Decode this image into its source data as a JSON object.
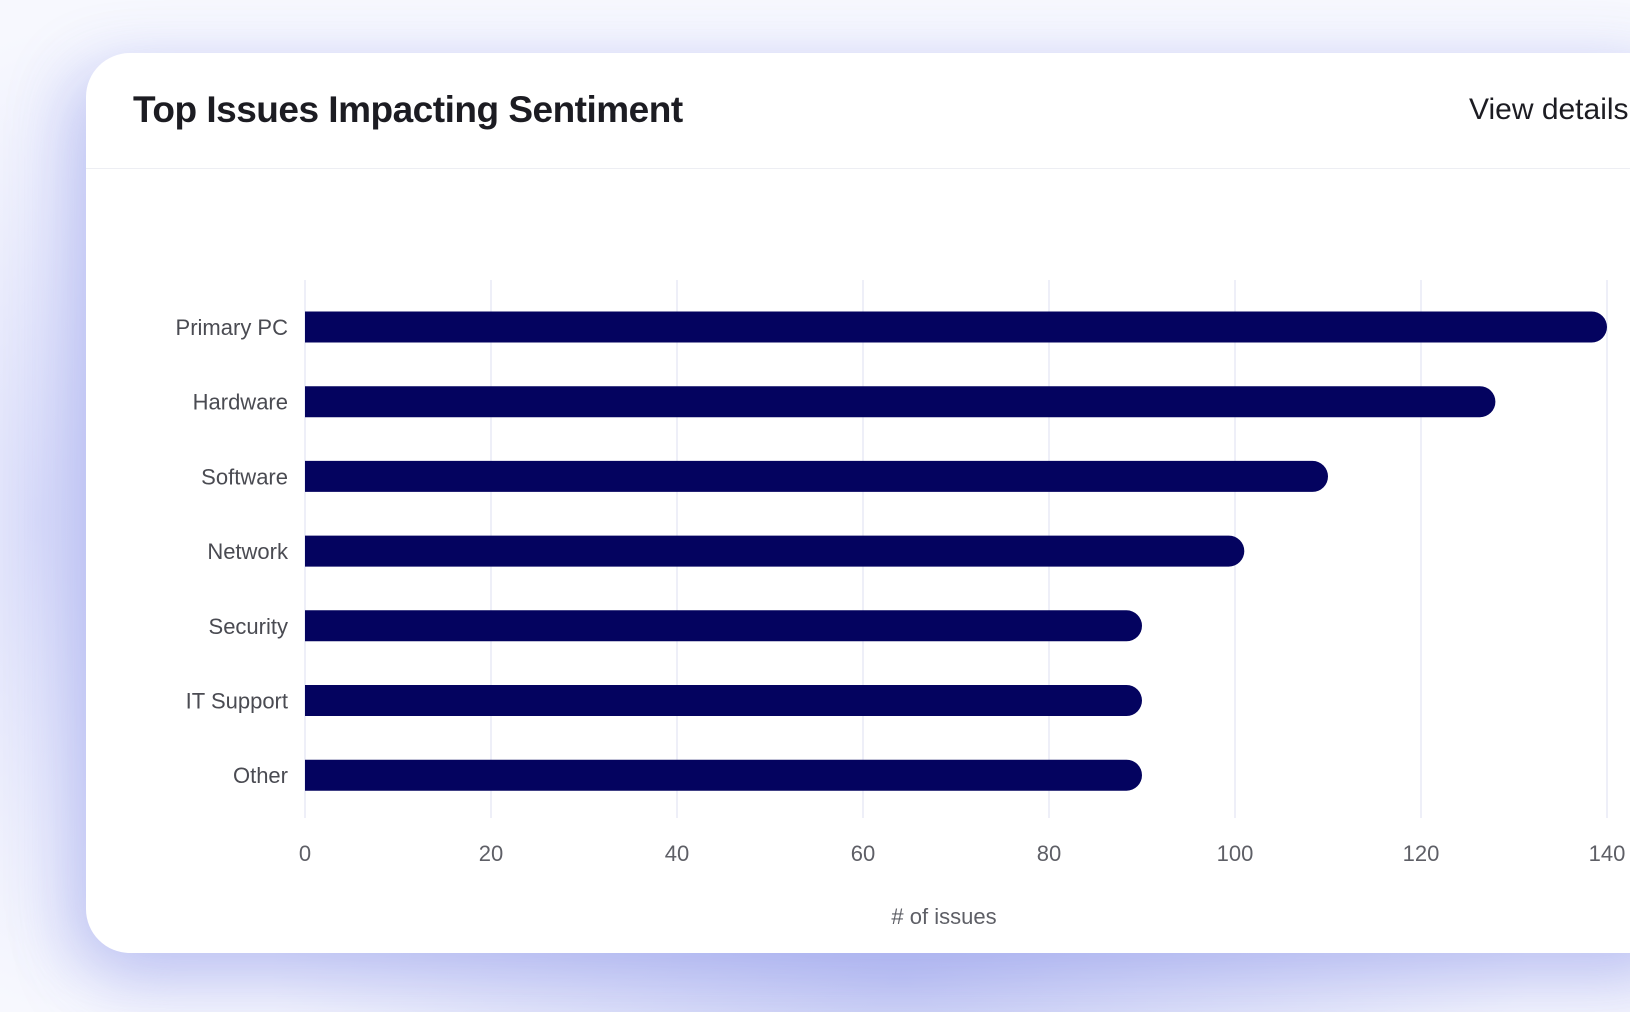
{
  "card": {
    "title": "Top Issues Impacting Sentiment",
    "view_details_label": "View details"
  },
  "colors": {
    "bar": "#04035f",
    "grid": "#e9eaf6",
    "background": "#f7f8fe"
  },
  "chart_data": {
    "type": "bar",
    "orientation": "horizontal",
    "categories": [
      "Primary PC",
      "Hardware",
      "Software",
      "Network",
      "Security",
      "IT Support",
      "Other"
    ],
    "values": [
      140,
      128,
      110,
      101,
      90,
      90,
      90
    ],
    "xlabel": "# of issues",
    "ylabel": "",
    "xlim": [
      0,
      140
    ],
    "xticks": [
      0,
      20,
      40,
      60,
      80,
      100,
      120,
      140
    ],
    "grid": "vertical"
  }
}
